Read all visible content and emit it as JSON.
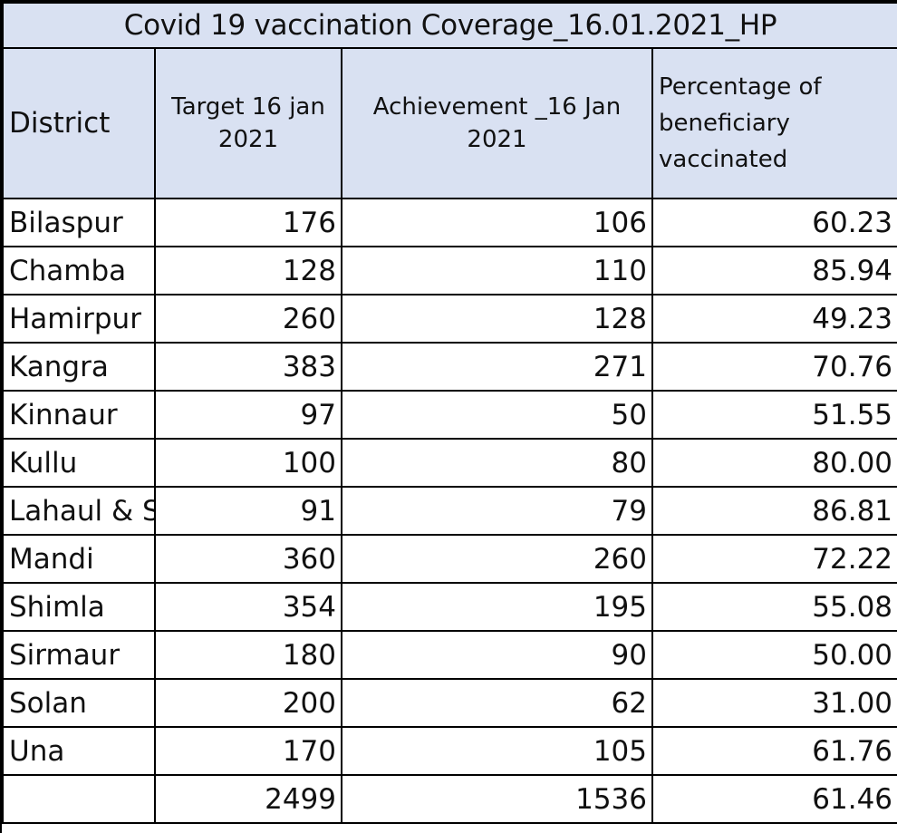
{
  "title": "Covid 19 vaccination Coverage_16.01.2021_HP",
  "headers": {
    "district": "District",
    "target": "Target 16 jan 2021",
    "achievement": "Achievement _16 Jan 2021",
    "percentage": "Percentage of beneficiary vaccinated"
  },
  "rows": [
    {
      "district": "Bilaspur",
      "target": "176",
      "achievement": "106",
      "percentage": "60.23"
    },
    {
      "district": "Chamba",
      "target": "128",
      "achievement": "110",
      "percentage": "85.94"
    },
    {
      "district": "Hamirpur",
      "target": "260",
      "achievement": "128",
      "percentage": "49.23"
    },
    {
      "district": "Kangra",
      "target": "383",
      "achievement": "271",
      "percentage": "70.76"
    },
    {
      "district": "Kinnaur",
      "target": "97",
      "achievement": "50",
      "percentage": "51.55"
    },
    {
      "district": "Kullu",
      "target": "100",
      "achievement": "80",
      "percentage": "80.00"
    },
    {
      "district": "Lahaul & S",
      "target": "91",
      "achievement": "79",
      "percentage": "86.81"
    },
    {
      "district": "Mandi",
      "target": "360",
      "achievement": "260",
      "percentage": "72.22"
    },
    {
      "district": "Shimla",
      "target": "354",
      "achievement": "195",
      "percentage": "55.08"
    },
    {
      "district": "Sirmaur",
      "target": "180",
      "achievement": "90",
      "percentage": "50.00"
    },
    {
      "district": "Solan",
      "target": "200",
      "achievement": "62",
      "percentage": "31.00"
    },
    {
      "district": "Una",
      "target": "170",
      "achievement": "105",
      "percentage": "61.76"
    }
  ],
  "total": {
    "district": "",
    "target": "2499",
    "achievement": "1536",
    "percentage": "61.46"
  }
}
